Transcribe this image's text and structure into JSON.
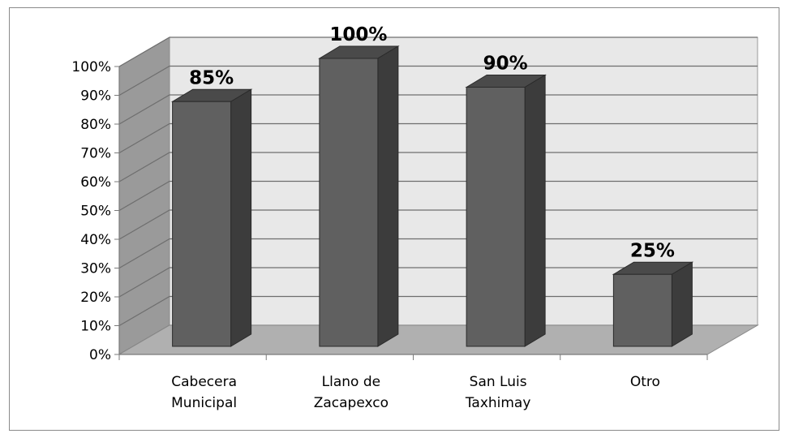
{
  "chart_data": {
    "type": "bar",
    "title": "",
    "xlabel": "",
    "ylabel": "",
    "categories": [
      [
        "Cabecera",
        "Municipal"
      ],
      [
        "Llano  de",
        "Zacapexco"
      ],
      [
        "San Luis",
        "Taxhimay"
      ],
      [
        "Otro"
      ]
    ],
    "values": [
      85,
      100,
      90,
      25
    ],
    "data_labels": [
      "85%",
      "100%",
      "90%",
      "25%"
    ],
    "ylim": [
      0,
      100
    ],
    "yticks": [
      0,
      10,
      20,
      30,
      40,
      50,
      60,
      70,
      80,
      90,
      100
    ],
    "ytick_labels": [
      "0%",
      "10%",
      "20%",
      "30%",
      "40%",
      "50%",
      "60%",
      "70%",
      "80%",
      "90%",
      "100%"
    ],
    "grid": true,
    "legend": "none",
    "style": "3d-column",
    "colors": {
      "bar_front": "#606060",
      "bar_side": "#3c3c3c",
      "bar_top": "#4a4a4a",
      "back_wall": "#e8e8e8",
      "side_wall": "#9a9a9a",
      "floor": "#b0b0b0",
      "grid": "#6e6e6e"
    }
  }
}
